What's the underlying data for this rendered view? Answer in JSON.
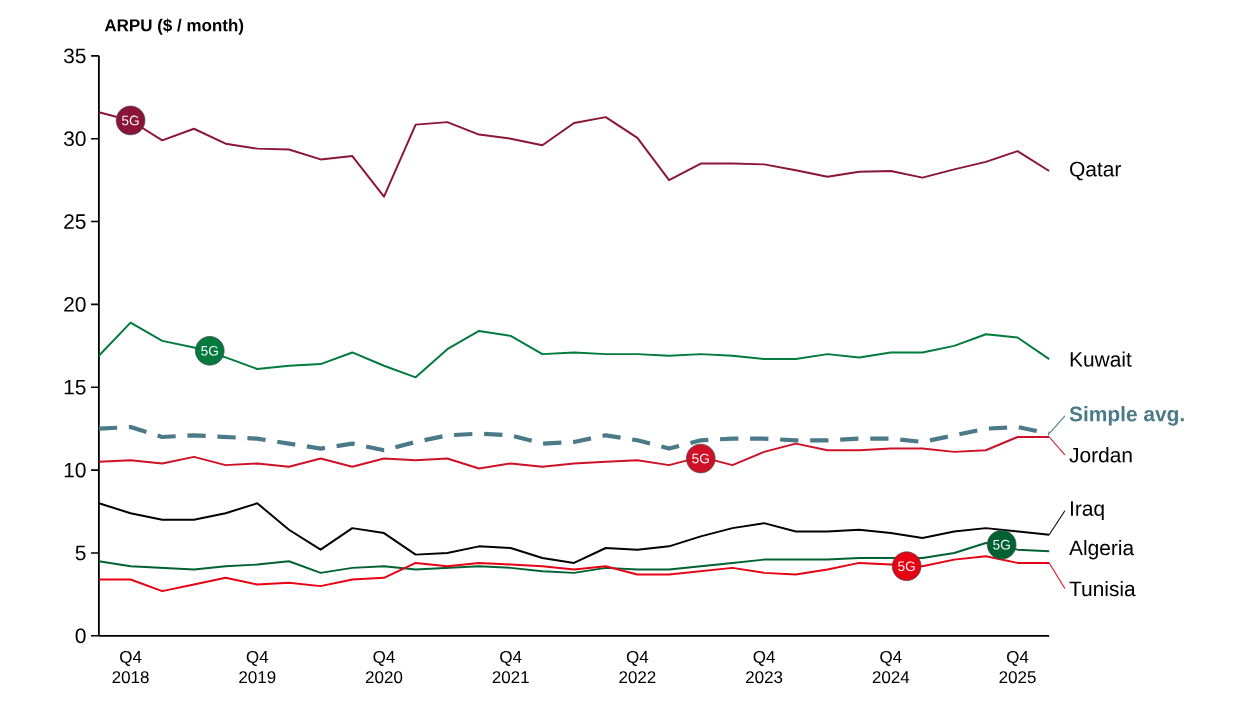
{
  "chart_data": {
    "type": "line",
    "ylabel": "ARPU ($ / month)",
    "categories": [
      null,
      "Q4 2018",
      null,
      null,
      null,
      "Q4 2019",
      null,
      null,
      null,
      "Q4 2020",
      null,
      null,
      null,
      "Q4 2021",
      null,
      null,
      null,
      "Q4 2022",
      null,
      null,
      null,
      "Q4 2023",
      null,
      null,
      null,
      "Q4 2024",
      null,
      null,
      null,
      "Q4 2025",
      null
    ],
    "series": [
      {
        "name": "Qatar",
        "color": "#8a1538",
        "values": [
          31.6,
          31.1,
          29.9,
          30.6,
          29.7,
          29.4,
          29.35,
          28.75,
          28.95,
          26.5,
          30.85,
          31.0,
          30.25,
          30.0,
          29.6,
          30.95,
          31.3,
          30.05,
          27.5,
          28.5,
          28.5,
          28.45,
          28.1,
          27.7,
          28.0,
          28.05,
          27.65,
          28.15,
          28.6,
          29.25,
          28.05
        ]
      },
      {
        "name": "Kuwait",
        "color": "#007a3d",
        "values": [
          16.9,
          18.9,
          17.8,
          17.4,
          16.8,
          16.1,
          16.3,
          16.4,
          17.1,
          16.3,
          15.6,
          17.3,
          18.4,
          18.1,
          17.0,
          17.1,
          17.0,
          17.0,
          16.9,
          17.0,
          16.9,
          16.7,
          16.7,
          17.0,
          16.8,
          17.1,
          17.1,
          17.5,
          18.2,
          18.0,
          16.7
        ]
      },
      {
        "name": "Simple avg.",
        "color": "#4a7a88",
        "line_style": "dashed",
        "values": [
          12.5,
          12.6,
          12.0,
          12.1,
          12.0,
          11.9,
          11.6,
          11.3,
          11.6,
          11.2,
          11.7,
          12.1,
          12.2,
          12.1,
          11.6,
          11.7,
          12.1,
          11.8,
          11.3,
          11.8,
          11.9,
          11.9,
          11.8,
          11.8,
          11.9,
          11.9,
          11.7,
          12.1,
          12.5,
          12.6,
          12.2
        ]
      },
      {
        "name": "Jordan",
        "color": "#ce1126",
        "values": [
          10.5,
          10.6,
          10.4,
          10.8,
          10.3,
          10.4,
          10.2,
          10.7,
          10.2,
          10.7,
          10.6,
          10.7,
          10.1,
          10.4,
          10.2,
          10.4,
          10.5,
          10.6,
          10.3,
          10.8,
          10.3,
          11.1,
          11.6,
          11.2,
          11.2,
          11.3,
          11.3,
          11.1,
          11.2,
          12.0,
          12.0
        ]
      },
      {
        "name": "Iraq",
        "color": "#000000",
        "values": [
          8.0,
          7.4,
          7.0,
          7.0,
          7.4,
          8.0,
          6.4,
          5.2,
          6.5,
          6.2,
          4.9,
          5.0,
          5.4,
          5.3,
          4.7,
          4.4,
          5.3,
          5.2,
          5.4,
          6.0,
          6.5,
          6.8,
          6.3,
          6.3,
          6.4,
          6.2,
          5.9,
          6.3,
          6.5,
          6.3,
          6.1
        ]
      },
      {
        "name": "Algeria",
        "color": "#006233",
        "values": [
          4.5,
          4.2,
          4.1,
          4.0,
          4.2,
          4.3,
          4.5,
          3.8,
          4.1,
          4.2,
          4.0,
          4.1,
          4.2,
          4.1,
          3.9,
          3.8,
          4.1,
          4.0,
          4.0,
          4.2,
          4.4,
          4.6,
          4.6,
          4.6,
          4.7,
          4.7,
          4.7,
          5.0,
          5.6,
          5.2,
          5.1
        ]
      },
      {
        "name": "Tunisia",
        "color": "#e70013",
        "values": [
          3.4,
          3.4,
          2.7,
          3.1,
          3.5,
          3.1,
          3.2,
          3.0,
          3.4,
          3.5,
          4.4,
          4.2,
          4.4,
          4.3,
          4.2,
          4.0,
          4.2,
          3.7,
          3.7,
          3.9,
          4.1,
          3.8,
          3.7,
          4.0,
          4.4,
          4.3,
          4.2,
          4.6,
          4.8,
          4.4,
          4.4
        ]
      }
    ],
    "annotations": [
      {
        "text": "5G",
        "x": "Q4 2018",
        "y": 31.1
      },
      {
        "text": "5G",
        "y": 17.2
      },
      {
        "text": "5G",
        "y": 10.7
      },
      {
        "text": "5G",
        "y": 4.2
      },
      {
        "text": "5G",
        "y": 5.5
      }
    ],
    "ylim": [
      0,
      35
    ],
    "yticks": [
      0,
      5,
      10,
      15,
      20,
      25,
      30,
      35
    ],
    "legend": "right",
    "grid": false,
    "marker": "none"
  }
}
